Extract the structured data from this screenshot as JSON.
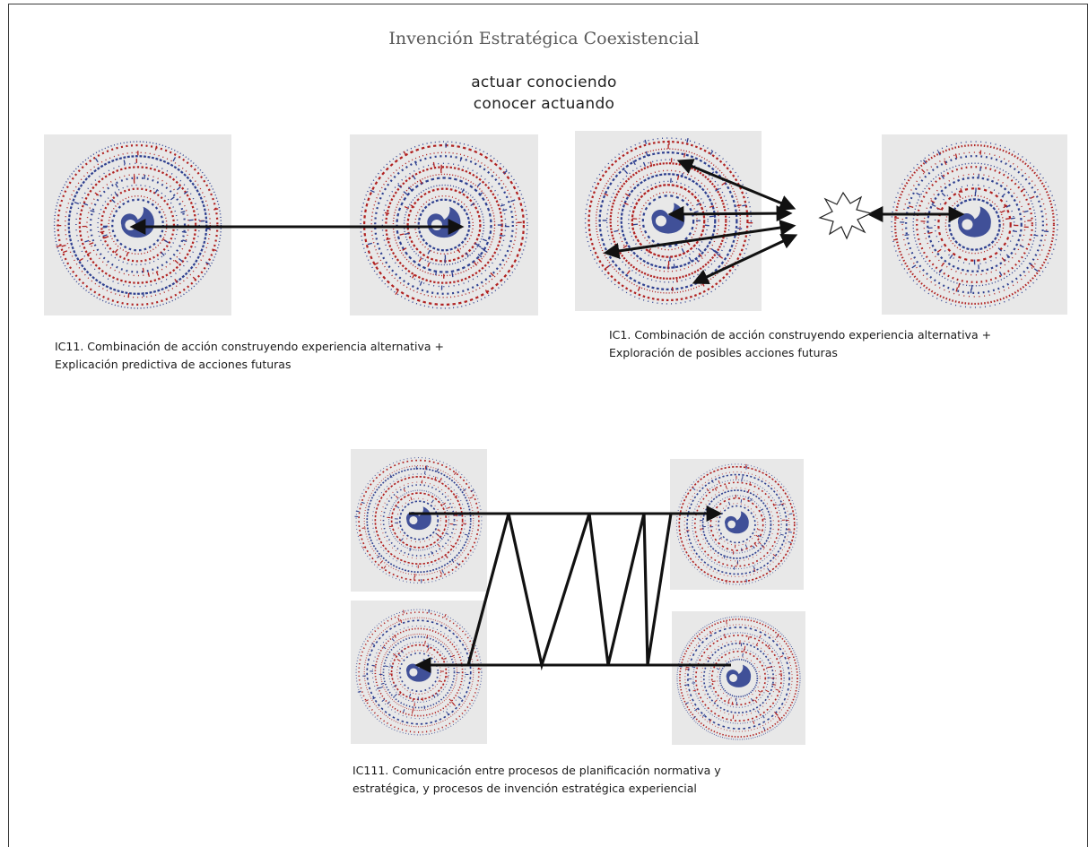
{
  "title": "Invención Estratégica Coexistencial",
  "motto": {
    "line1": "actuar conociendo",
    "line2": "conocer actuando"
  },
  "panels": {
    "ic11": {
      "caption_line1": "IC11. Combinación de acción construyendo experiencia alternativa +",
      "caption_line2": "Explicación predictiva de acciones futuras"
    },
    "ic1": {
      "caption_line1": "IC1. Combinación de acción construyendo experiencia alternativa +",
      "caption_line2": "Exploración de posibles acciones futuras"
    },
    "ic111": {
      "caption_line1": "IC111. Comunicación entre procesos de planificación normativa y",
      "caption_line2": "estratégica, y procesos de invención estratégica experiencial"
    }
  },
  "colors": {
    "spiral_blue": "#2e3f8f",
    "spiral_red": "#b02020",
    "tile_bg": "#e8e8e8",
    "arrow": "#111111"
  },
  "icons": [
    "spiral-pattern-icon",
    "double-arrow-icon",
    "starburst-icon",
    "zigzag-connector-icon"
  ]
}
